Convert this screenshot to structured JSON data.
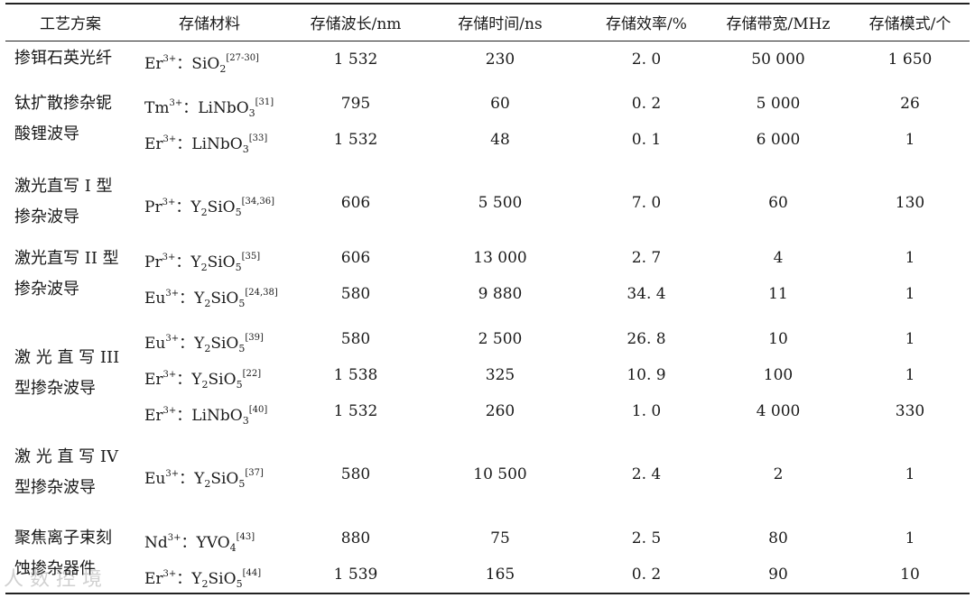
{
  "headers": [
    "工艺方案",
    "存储材料",
    "存储波长/nm",
    "存储时间/ns",
    "存储效率/%",
    "存储带宽/MHz",
    "存储模式/个"
  ],
  "groups": [
    {
      "label_lines": [
        "掺铒石英光纤"
      ]
    },
    {
      "label_lines": [
        "钛扩散掺杂铌",
        "酸锂波导"
      ]
    },
    {
      "label_lines": [
        "激光直写 I 型",
        "掺杂波导"
      ]
    },
    {
      "label_lines": [
        "激光直写 II 型",
        "掺杂波导"
      ]
    },
    {
      "label_lines": [
        "激 光 直 写 III",
        "型掺杂波导"
      ]
    },
    {
      "label_lines": [
        "激 光 直 写 IV",
        "型掺杂波导"
      ]
    },
    {
      "label_lines": [
        "聚焦离子束刻",
        "蚀掺杂器件"
      ]
    }
  ],
  "rows": [
    {
      "ion": "Er",
      "charge": "3+",
      "host": "SiO",
      "host_sub": "2",
      "host_tail": "",
      "host_sub2": "",
      "ref": "[27-30]",
      "wavelength": "1 532",
      "time": "230",
      "efficiency": "2. 0",
      "bandwidth": "50 000",
      "modes": "1 650"
    },
    {
      "ion": "Tm",
      "charge": "3+",
      "host": "LiNbO",
      "host_sub": "3",
      "host_tail": "",
      "host_sub2": "",
      "ref": "[31]",
      "wavelength": "795",
      "time": "60",
      "efficiency": "0. 2",
      "bandwidth": "5 000",
      "modes": "26"
    },
    {
      "ion": "Er",
      "charge": "3+",
      "host": "LiNbO",
      "host_sub": "3",
      "host_tail": "",
      "host_sub2": "",
      "ref": "[33]",
      "wavelength": "1 532",
      "time": "48",
      "efficiency": "0. 1",
      "bandwidth": "6 000",
      "modes": "1"
    },
    {
      "ion": "Pr",
      "charge": "3+",
      "host": "Y",
      "host_sub": "2",
      "host_tail": "SiO",
      "host_sub2": "5",
      "ref": "[34,36]",
      "wavelength": "606",
      "time": "5 500",
      "efficiency": "7. 0",
      "bandwidth": "60",
      "modes": "130"
    },
    {
      "ion": "Pr",
      "charge": "3+",
      "host": "Y",
      "host_sub": "2",
      "host_tail": "SiO",
      "host_sub2": "5",
      "ref": "[35]",
      "wavelength": "606",
      "time": "13 000",
      "efficiency": "2. 7",
      "bandwidth": "4",
      "modes": "1"
    },
    {
      "ion": "Eu",
      "charge": "3+",
      "host": "Y",
      "host_sub": "2",
      "host_tail": "SiO",
      "host_sub2": "5",
      "ref": "[24,38]",
      "wavelength": "580",
      "time": "9 880",
      "efficiency": "34. 4",
      "bandwidth": "11",
      "modes": "1"
    },
    {
      "ion": "Eu",
      "charge": "3+",
      "host": "Y",
      "host_sub": "2",
      "host_tail": "SiO",
      "host_sub2": "5",
      "ref": "[39]",
      "wavelength": "580",
      "time": "2 500",
      "efficiency": "26. 8",
      "bandwidth": "10",
      "modes": "1"
    },
    {
      "ion": "Er",
      "charge": "3+",
      "host": "Y",
      "host_sub": "2",
      "host_tail": "SiO",
      "host_sub2": "5",
      "ref": "[22]",
      "wavelength": "1 538",
      "time": "325",
      "efficiency": "10. 9",
      "bandwidth": "100",
      "modes": "1"
    },
    {
      "ion": "Er",
      "charge": "3+",
      "host": "LiNbO",
      "host_sub": "3",
      "host_tail": "",
      "host_sub2": "",
      "ref": "[40]",
      "wavelength": "1 532",
      "time": "260",
      "efficiency": "1. 0",
      "bandwidth": "4 000",
      "modes": "330"
    },
    {
      "ion": "Eu",
      "charge": "3+",
      "host": "Y",
      "host_sub": "2",
      "host_tail": "SiO",
      "host_sub2": "5",
      "ref": "[37]",
      "wavelength": "580",
      "time": "10 500",
      "efficiency": "2. 4",
      "bandwidth": "2",
      "modes": "1"
    },
    {
      "ion": "Nd",
      "charge": "3+",
      "host": "YVO",
      "host_sub": "4",
      "host_tail": "",
      "host_sub2": "",
      "ref": "[43]",
      "wavelength": "880",
      "time": "75",
      "efficiency": "2. 5",
      "bandwidth": "80",
      "modes": "1"
    },
    {
      "ion": "Er",
      "charge": "3+",
      "host": "Y",
      "host_sub": "2",
      "host_tail": "SiO",
      "host_sub2": "5",
      "ref": "[44]",
      "wavelength": "1 539",
      "time": "165",
      "efficiency": "0. 2",
      "bandwidth": "90",
      "modes": "10"
    }
  ],
  "watermark": "人 数 控 境"
}
